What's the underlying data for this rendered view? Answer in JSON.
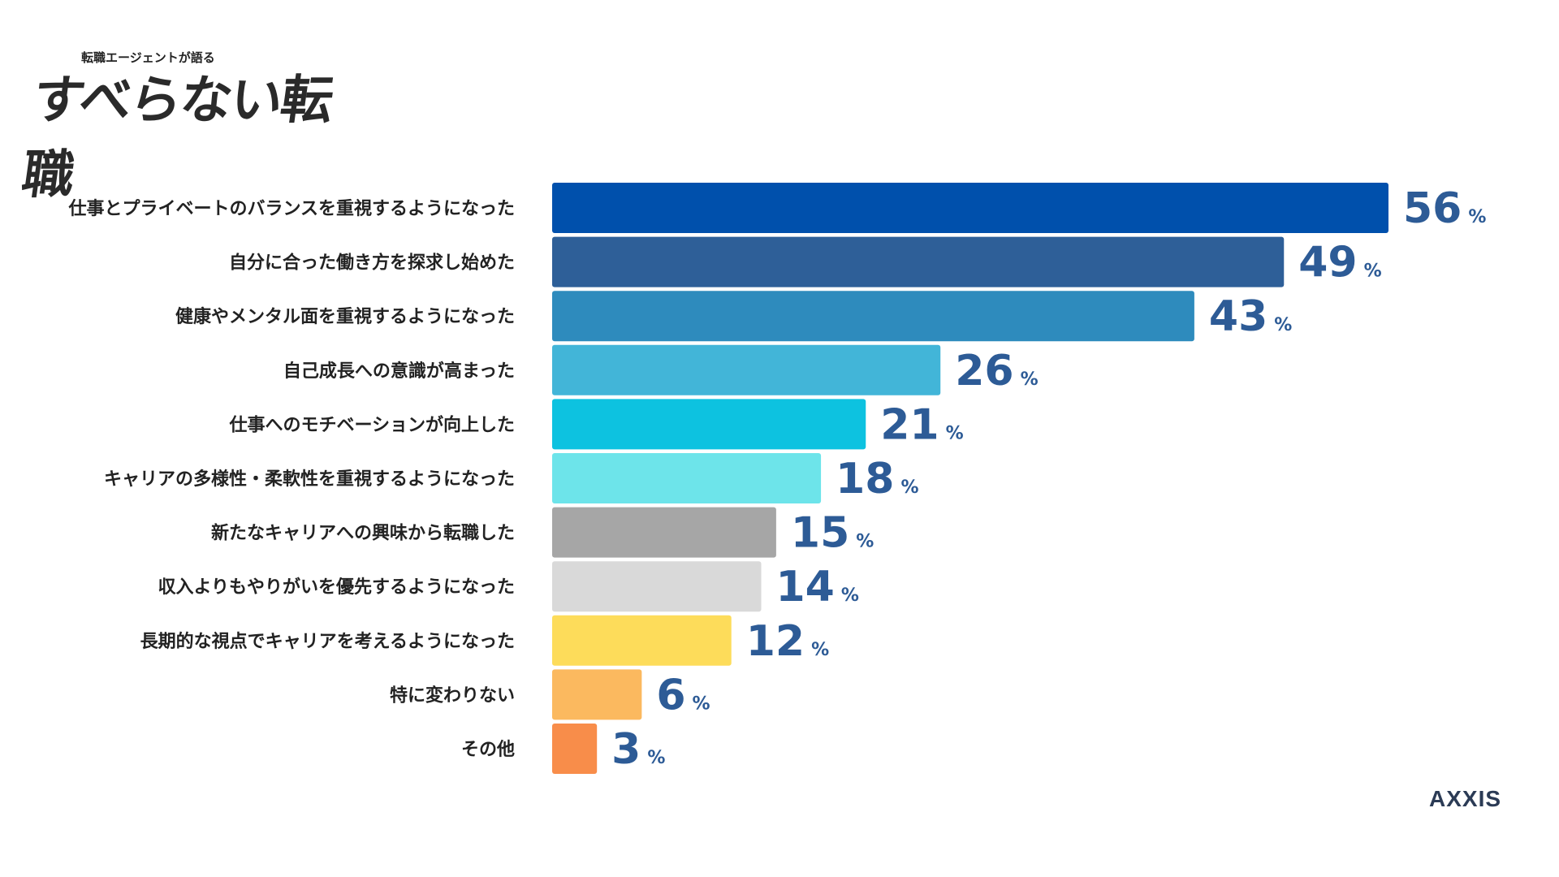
{
  "logo": {
    "subtitle": "転職エージェントが語る",
    "main": "すべらない転職"
  },
  "brand": {
    "name": "AXXIS"
  },
  "chart_data": {
    "type": "bar",
    "orientation": "horizontal",
    "title": "",
    "xlabel": "",
    "ylabel": "",
    "unit": "%",
    "xlim": [
      0,
      56
    ],
    "grid": false,
    "categories": [
      "仕事とプライベートのバランスを重視するようになった",
      "自分に合った働き方を探求し始めた",
      "健康やメンタル面を重視するようになった",
      "自己成長への意識が高まった",
      "仕事へのモチベーションが向上した",
      "キャリアの多様性・柔軟性を重視するようになった",
      "新たなキャリアへの興味から転職した",
      "収入よりもやりがいを優先するようになった",
      "長期的な視点でキャリアを考えるようになった",
      "特に変わりない",
      "その他"
    ],
    "values": [
      56,
      49,
      43,
      26,
      21,
      18,
      15,
      14,
      12,
      6,
      3
    ],
    "colors": [
      "#0050ac",
      "#2e5f98",
      "#2e8bbd",
      "#42b5d8",
      "#0dc2e0",
      "#6de4ea",
      "#a6a6a6",
      "#d9d9d9",
      "#fddc5a",
      "#fbb95f",
      "#f88d4a"
    ],
    "value_color": "#2d5b96",
    "label_color": "#222222"
  }
}
